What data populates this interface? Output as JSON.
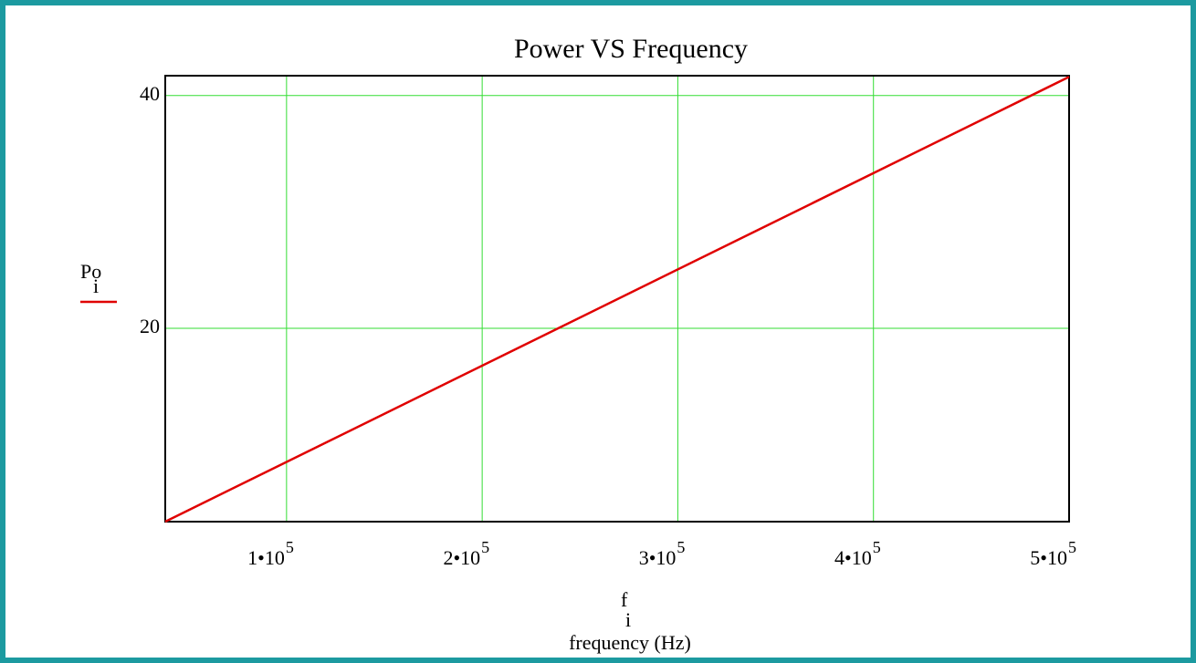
{
  "chart_data": {
    "type": "line",
    "title": "Power VS Frequency",
    "ylabel": {
      "text": "Po",
      "subscript": "i"
    },
    "xlabel": {
      "text": "f",
      "subscript": "i",
      "caption": "frequency (Hz)"
    },
    "x": [
      38000,
      500000
    ],
    "series": [
      {
        "name": "Po",
        "color": "#e00000",
        "values": [
          3.4,
          41.6
        ]
      }
    ],
    "xlim": [
      38000,
      500000
    ],
    "ylim": [
      3.4,
      41.7
    ],
    "xticks": [
      {
        "value": 100000,
        "label": "1•10",
        "exponent": "5"
      },
      {
        "value": 200000,
        "label": "2•10",
        "exponent": "5"
      },
      {
        "value": 300000,
        "label": "3•10",
        "exponent": "5"
      },
      {
        "value": 400000,
        "label": "4•10",
        "exponent": "5"
      },
      {
        "value": 500000,
        "label": "5•10",
        "exponent": "5"
      }
    ],
    "yticks": [
      20,
      40
    ],
    "grid": true,
    "grid_color": "#33dd33"
  }
}
